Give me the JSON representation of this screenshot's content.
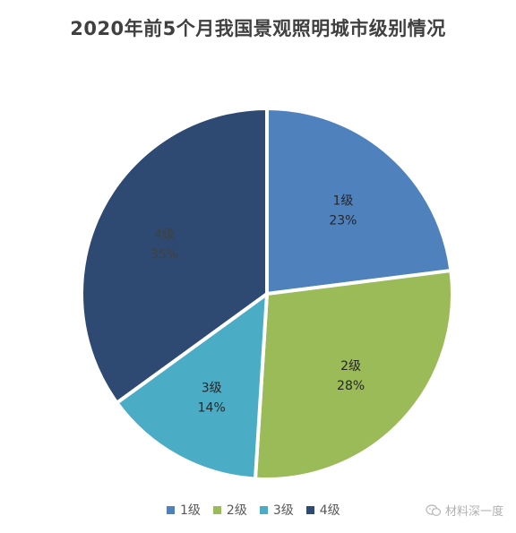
{
  "chart_data": {
    "type": "pie",
    "title": "2020年前5个月我国景观照明城市级别情况",
    "categories": [
      "1级",
      "2级",
      "3级",
      "4级"
    ],
    "values": [
      23,
      28,
      14,
      35
    ],
    "labels": [
      {
        "name": "1级",
        "percent": "23%"
      },
      {
        "name": "2级",
        "percent": "28%"
      },
      {
        "name": "3级",
        "percent": "14%"
      },
      {
        "name": "4级",
        "percent": "35%"
      }
    ],
    "colors": [
      "#4f81bd",
      "#9bbb59",
      "#4bacc6",
      "#2e4a72"
    ],
    "legend_position": "bottom"
  },
  "watermark": {
    "icon": "wechat-icon",
    "text": "材料深一度"
  }
}
